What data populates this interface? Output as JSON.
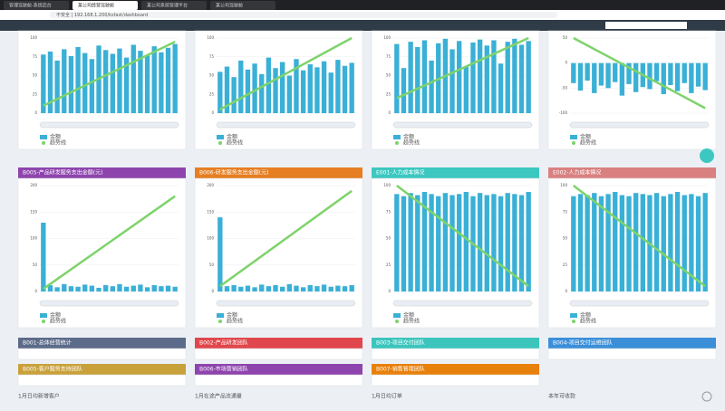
{
  "browser": {
    "tabs": [
      "管理驾驶舱-系统后台",
      "某公司经营驾驶舱",
      "某公司系统管理平台",
      "某公司驾驶舱"
    ],
    "url": "不安全 | 192.168.1.200/ksfast/dashboard"
  },
  "panels": [
    {
      "chart": {
        "ylim": [
          0,
          100
        ],
        "yticks": [
          0,
          25,
          50,
          75,
          100
        ],
        "values": [
          78,
          82,
          70,
          85,
          76,
          88,
          80,
          72,
          90,
          84,
          79,
          86,
          74,
          91,
          83,
          77,
          89,
          81,
          87,
          92
        ],
        "trend": [
          10,
          95
        ],
        "legend": [
          "金额",
          "趋势线"
        ]
      }
    },
    {
      "chart": {
        "ylim": [
          0,
          100
        ],
        "yticks": [
          0,
          25,
          50,
          75,
          100
        ],
        "values": [
          55,
          62,
          48,
          70,
          58,
          66,
          52,
          74,
          60,
          68,
          50,
          72,
          57,
          65,
          61,
          69,
          54,
          71,
          63,
          67
        ],
        "trend": [
          5,
          100
        ],
        "legend": [
          "金额",
          "趋势线"
        ]
      }
    },
    {
      "chart": {
        "ylim": [
          0,
          100
        ],
        "yticks": [
          0,
          25,
          50,
          75,
          100
        ],
        "values": [
          92,
          60,
          95,
          88,
          97,
          70,
          93,
          99,
          85,
          96,
          62,
          94,
          98,
          90,
          97,
          66,
          95,
          99,
          91,
          96
        ],
        "trend": [
          20,
          100
        ],
        "legend": [
          "金额",
          "趋势线"
        ]
      }
    },
    {
      "chart": {
        "ylim": [
          -100,
          50
        ],
        "yticks": [
          -100,
          -50,
          0,
          50
        ],
        "values": [
          -40,
          -55,
          -35,
          -60,
          -45,
          -50,
          -38,
          -65,
          -42,
          -58,
          -48,
          -52,
          -36,
          -62,
          -44,
          -56,
          -40,
          -60,
          -47,
          -54
        ],
        "trend": [
          50,
          -90
        ],
        "legend": [
          "金额",
          "趋势线"
        ]
      }
    },
    {
      "title": "B005-产品研发服务支出金额(元)",
      "color": "#8e44ad",
      "chart": {
        "ylim": [
          0,
          200
        ],
        "yticks": [
          0,
          50,
          100,
          150,
          200
        ],
        "values": [
          130,
          12,
          8,
          14,
          10,
          9,
          13,
          11,
          7,
          12,
          10,
          14,
          9,
          11,
          13,
          8,
          12,
          10,
          11,
          9
        ],
        "trend": [
          5,
          180
        ],
        "legend": [
          "金额",
          "趋势线"
        ]
      }
    },
    {
      "title": "B006-研发服务支出金额(元)",
      "color": "#e67e22",
      "chart": {
        "ylim": [
          0,
          200
        ],
        "yticks": [
          0,
          50,
          100,
          150,
          200
        ],
        "values": [
          140,
          10,
          12,
          9,
          11,
          8,
          13,
          10,
          12,
          9,
          14,
          11,
          8,
          12,
          10,
          13,
          9,
          11,
          10,
          12
        ],
        "trend": [
          10,
          190
        ],
        "legend": [
          "金额",
          "趋势线"
        ]
      }
    },
    {
      "title": "E001-人力成本情况",
      "color": "#3cc8c0",
      "chart": {
        "ylim": [
          0,
          100
        ],
        "yticks": [
          0,
          25,
          50,
          75,
          100
        ],
        "values": [
          92,
          90,
          93,
          91,
          94,
          92,
          90,
          93,
          91,
          92,
          94,
          90,
          93,
          91,
          92,
          90,
          93,
          92,
          91,
          94
        ],
        "trend": [
          100,
          5
        ],
        "legend": [
          "金额",
          "趋势线"
        ]
      }
    },
    {
      "title": "E002-人力成本情况",
      "color": "#d98080",
      "chart": {
        "ylim": [
          0,
          100
        ],
        "yticks": [
          0,
          25,
          50,
          75,
          100
        ],
        "values": [
          90,
          92,
          91,
          93,
          90,
          92,
          94,
          91,
          90,
          93,
          92,
          91,
          93,
          90,
          92,
          94,
          91,
          92,
          90,
          93
        ],
        "trend": [
          100,
          5
        ],
        "legend": [
          "金额",
          "趋势线"
        ]
      }
    },
    {
      "title": "B001-总体经营统计",
      "color": "#5d6b8a"
    },
    {
      "title": "B002-产品研发团队",
      "color": "#e0474c"
    },
    {
      "title": "B003-项目交付团队",
      "color": "#3bc5bd"
    },
    {
      "title": "B004-项目交付运维团队",
      "color": "#3b8fd9"
    },
    {
      "title": "B005-客户服务支持团队",
      "color": "#c9a13b"
    },
    {
      "title": "B006-市场营销团队",
      "color": "#8e44ad"
    },
    {
      "title": "B007-销售管理团队",
      "color": "#e8800c"
    }
  ],
  "footer": [
    "1月日均新增客户",
    "1月在途产品流通量",
    "1月日均订单",
    "本年可收款"
  ]
}
